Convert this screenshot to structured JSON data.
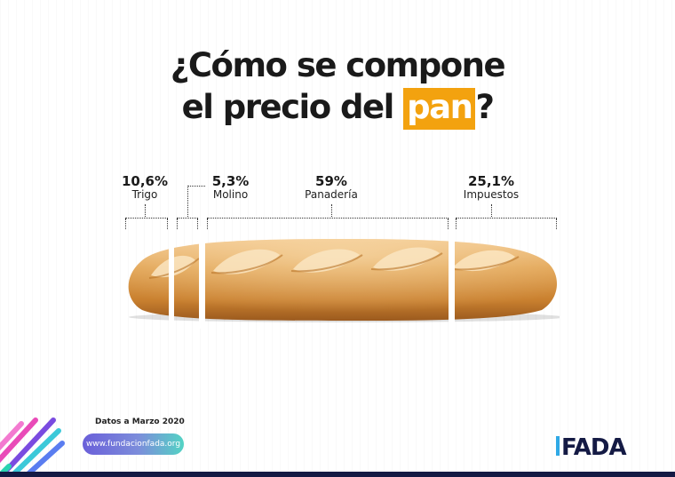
{
  "title": {
    "line1": "¿Cómo se compone",
    "line2_prefix": "el precio del ",
    "line2_highlight": "pan",
    "line2_suffix": "?"
  },
  "segments": [
    {
      "percent": "10,6%",
      "name": "Trigo"
    },
    {
      "percent": "5,3%",
      "name": "Molino"
    },
    {
      "percent": "59%",
      "name": "Panadería"
    },
    {
      "percent": "25,1%",
      "name": "Impuestos"
    }
  ],
  "footer": {
    "date_note": "Datos a Marzo 2020",
    "url": "www.fundacionfada.org"
  },
  "logo": {
    "text": "FADA"
  },
  "colors": {
    "highlight": "#f3a20f",
    "bread": "#d68f3a",
    "logo_dark": "#141a44",
    "logo_accent": "#2fa9e6"
  }
}
